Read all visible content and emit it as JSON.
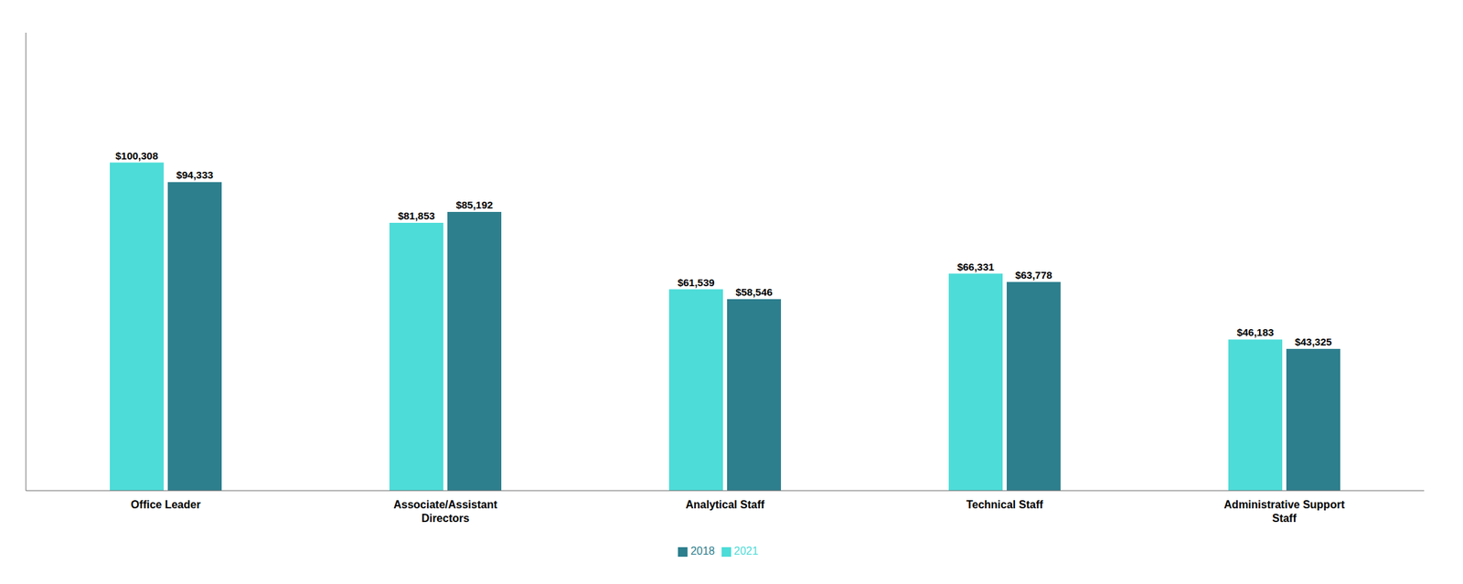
{
  "chart_data": {
    "type": "bar",
    "categories": [
      "Office Leader",
      "Associate/Assistant\nDirectors",
      "Analytical Staff",
      "Technical Staff",
      "Administrative Support\nStaff"
    ],
    "series": [
      {
        "name": "2021",
        "color": "#4DDCD8",
        "values": [
          100308,
          81853,
          61539,
          66331,
          46183
        ],
        "value_labels": [
          "$100,308",
          "$81,853",
          "$61,539",
          "$66,331",
          "$46,183"
        ]
      },
      {
        "name": "2018",
        "color": "#2D7F8E",
        "values": [
          94333,
          85192,
          58546,
          63778,
          43325
        ],
        "value_labels": [
          "$94,333",
          "$85,192",
          "$58,546",
          "$63,778",
          "$43,325"
        ]
      }
    ],
    "ylim": [
      0,
      140000
    ],
    "data_labels": true,
    "tick_labels": "x",
    "legend": "bottom",
    "grid": false
  }
}
